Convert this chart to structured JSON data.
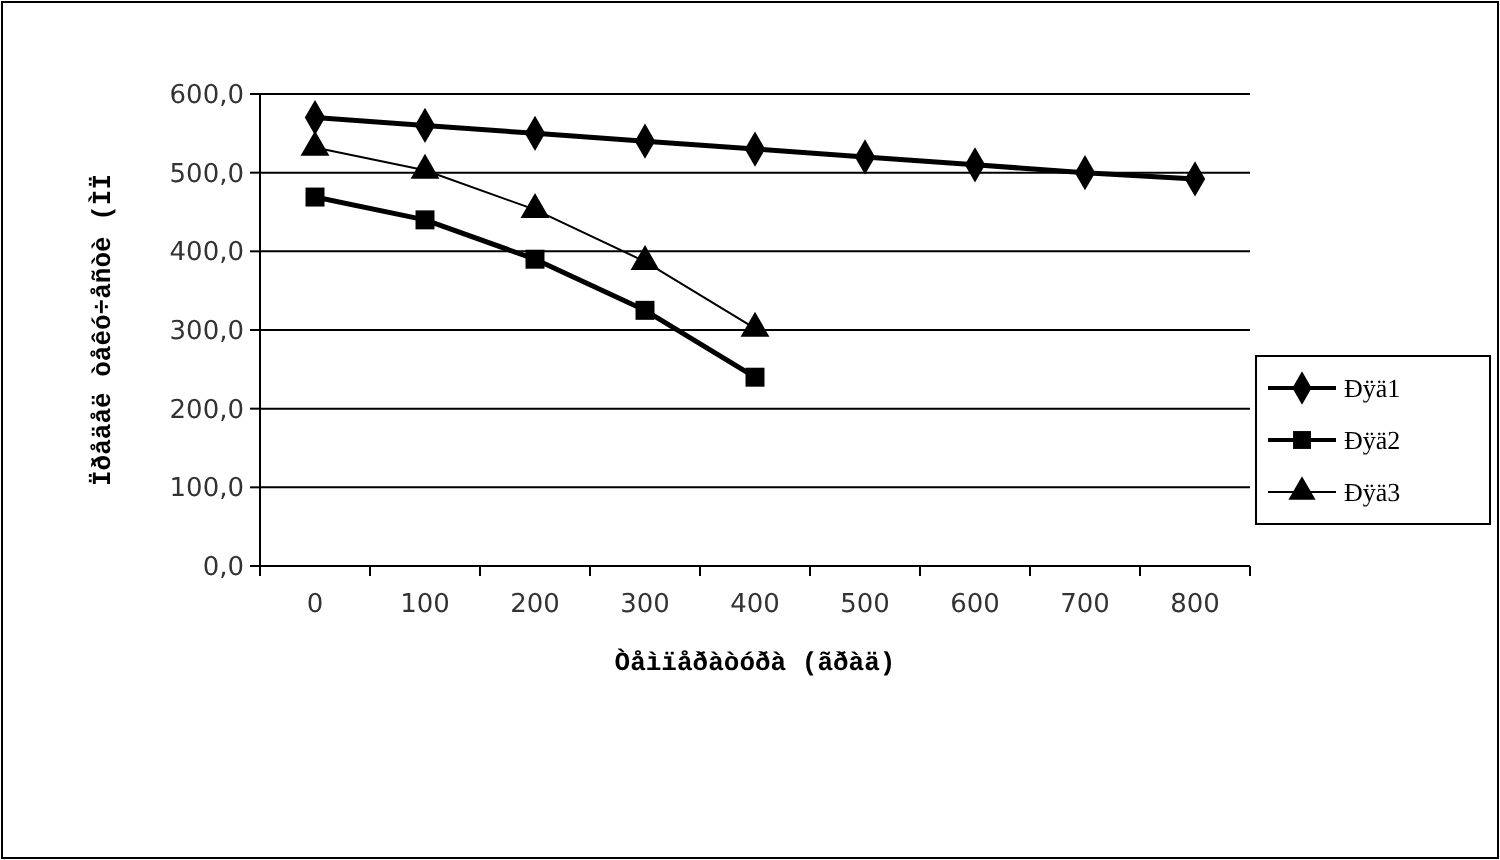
{
  "chart_data": {
    "type": "line",
    "xlabel": "Òåìïåðàòóðà (ãðàä)",
    "ylabel": "Ïðåäåë òåêó÷åñòè  (ÌÏ",
    "categories": [
      "0",
      "100",
      "200",
      "300",
      "400",
      "500",
      "600",
      "700",
      "800"
    ],
    "ylim": [
      0,
      600
    ],
    "yticks": [
      {
        "value": 0,
        "label": "0,0"
      },
      {
        "value": 100,
        "label": "100,0"
      },
      {
        "value": 200,
        "label": "200,0"
      },
      {
        "value": 300,
        "label": "300,0"
      },
      {
        "value": 400,
        "label": "400,0"
      },
      {
        "value": 500,
        "label": "500,0"
      },
      {
        "value": 600,
        "label": "600,0"
      }
    ],
    "grid": "y",
    "legend": "right",
    "series": [
      {
        "name": "Ðÿä1",
        "color": "#000000",
        "marker": "diamond",
        "values": [
          570,
          560,
          550,
          540,
          530,
          520,
          510,
          500,
          492
        ]
      },
      {
        "name": "Ðÿä2",
        "color": "#000000",
        "marker": "square",
        "values": [
          469,
          440,
          390,
          325,
          240,
          null,
          null,
          null,
          null
        ]
      },
      {
        "name": "Ðÿä3",
        "color": "#000000",
        "marker": "triangle",
        "values": [
          532,
          503,
          453,
          387,
          302,
          null,
          null,
          null,
          null
        ]
      }
    ]
  }
}
